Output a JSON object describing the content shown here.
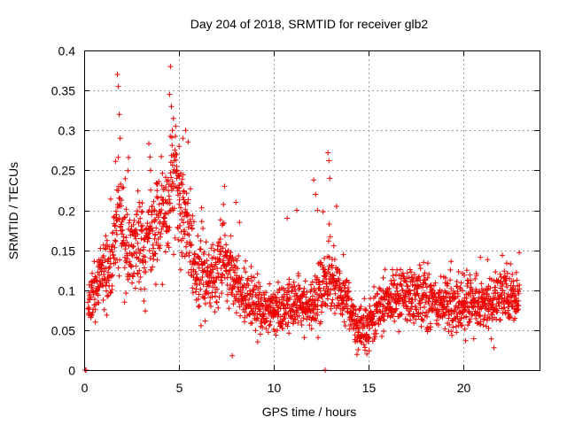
{
  "chart_data": {
    "type": "scatter",
    "title": "Day 204 of 2018, SRMTID for receiver glb2",
    "xlabel": "GPS time / hours",
    "ylabel": "SRMTID / TECUs",
    "xlim": [
      0,
      24
    ],
    "ylim": [
      0,
      0.4
    ],
    "xticks": [
      0,
      5,
      10,
      15,
      20
    ],
    "xtick_labels": [
      "0",
      "5",
      "10",
      "15",
      "20"
    ],
    "yticks": [
      0,
      0.05,
      0.1,
      0.15,
      0.2,
      0.25,
      0.3,
      0.35,
      0.4
    ],
    "ytick_labels": [
      "0",
      "0.05",
      "0.1",
      "0.15",
      "0.2",
      "0.25",
      "0.3",
      "0.35",
      "0.4"
    ],
    "grid": true,
    "marker": "+",
    "color": "#ee0000",
    "series": [
      {
        "name": "glb2",
        "trend": [
          [
            0.0,
            0.07
          ],
          [
            0.5,
            0.1
          ],
          [
            1.0,
            0.12
          ],
          [
            1.5,
            0.14
          ],
          [
            1.8,
            0.2
          ],
          [
            2.0,
            0.17
          ],
          [
            2.5,
            0.15
          ],
          [
            3.0,
            0.16
          ],
          [
            3.5,
            0.17
          ],
          [
            4.0,
            0.19
          ],
          [
            4.5,
            0.21
          ],
          [
            4.8,
            0.24
          ],
          [
            5.0,
            0.22
          ],
          [
            5.5,
            0.17
          ],
          [
            6.0,
            0.12
          ],
          [
            6.5,
            0.11
          ],
          [
            7.0,
            0.12
          ],
          [
            7.5,
            0.14
          ],
          [
            8.0,
            0.11
          ],
          [
            9.0,
            0.08
          ],
          [
            10.0,
            0.075
          ],
          [
            11.0,
            0.08
          ],
          [
            12.0,
            0.08
          ],
          [
            12.8,
            0.11
          ],
          [
            13.5,
            0.1
          ],
          [
            14.0,
            0.075
          ],
          [
            14.5,
            0.05
          ],
          [
            15.0,
            0.06
          ],
          [
            16.0,
            0.085
          ],
          [
            17.0,
            0.095
          ],
          [
            18.0,
            0.09
          ],
          [
            19.0,
            0.085
          ],
          [
            20.0,
            0.08
          ],
          [
            21.0,
            0.08
          ],
          [
            22.0,
            0.09
          ],
          [
            23.0,
            0.09
          ]
        ],
        "spread": [
          [
            0.0,
            0.03
          ],
          [
            1.0,
            0.035
          ],
          [
            2.0,
            0.06
          ],
          [
            4.0,
            0.06
          ],
          [
            5.0,
            0.06
          ],
          [
            6.0,
            0.05
          ],
          [
            8.0,
            0.035
          ],
          [
            10.0,
            0.025
          ],
          [
            12.0,
            0.03
          ],
          [
            13.0,
            0.04
          ],
          [
            14.0,
            0.025
          ],
          [
            15.0,
            0.025
          ],
          [
            17.0,
            0.03
          ],
          [
            23.0,
            0.03
          ]
        ],
        "points_per_hour": 100,
        "x_end": 22.95,
        "peaks": [
          {
            "x": 1.75,
            "y": 0.37
          },
          {
            "x": 1.8,
            "y": 0.355
          },
          {
            "x": 1.85,
            "y": 0.32
          },
          {
            "x": 1.9,
            "y": 0.29
          },
          {
            "x": 4.55,
            "y": 0.38
          },
          {
            "x": 4.5,
            "y": 0.345
          },
          {
            "x": 4.6,
            "y": 0.33
          },
          {
            "x": 4.7,
            "y": 0.315
          },
          {
            "x": 4.65,
            "y": 0.3
          },
          {
            "x": 5.35,
            "y": 0.3
          },
          {
            "x": 5.2,
            "y": 0.29
          },
          {
            "x": 5.0,
            "y": 0.28
          },
          {
            "x": 12.85,
            "y": 0.272
          },
          {
            "x": 12.9,
            "y": 0.262
          },
          {
            "x": 12.95,
            "y": 0.24
          },
          {
            "x": 12.1,
            "y": 0.238
          },
          {
            "x": 12.2,
            "y": 0.22
          },
          {
            "x": 10.7,
            "y": 0.19
          },
          {
            "x": 7.4,
            "y": 0.23
          },
          {
            "x": 8.0,
            "y": 0.21
          },
          {
            "x": 12.3,
            "y": 0.2
          },
          {
            "x": 11.2,
            "y": 0.2
          },
          {
            "x": 13.3,
            "y": 0.205
          },
          {
            "x": 3.5,
            "y": 0.25
          }
        ],
        "lows": [
          {
            "x": 0.05,
            "y": 0.0
          },
          {
            "x": 0.1,
            "y": 0.0
          },
          {
            "x": 12.7,
            "y": 0.0
          },
          {
            "x": 7.8,
            "y": 0.018
          },
          {
            "x": 14.9,
            "y": 0.02
          },
          {
            "x": 14.8,
            "y": 0.025
          },
          {
            "x": 21.6,
            "y": 0.028
          }
        ]
      }
    ]
  }
}
